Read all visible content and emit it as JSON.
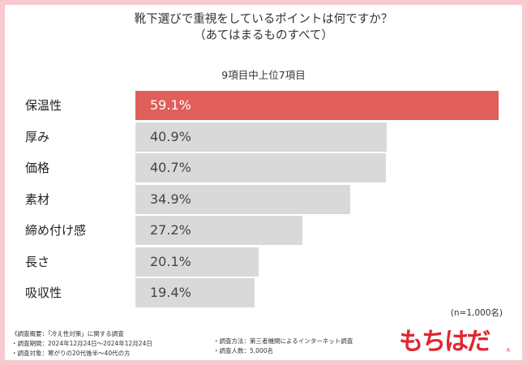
{
  "title_line1": "靴下選びで重視をしているポイントは何ですか？",
  "title_line2": "（あてはまるものすべて）",
  "subtitle": "9項目中上位7項目",
  "note": "(n=1,000名)",
  "footer": {
    "heading": "《調査概要：「冷え性対策」に関する調査",
    "period": "・調査期間：2024年12月24日～2024年12月24日",
    "target": "・調査対象：寒がりの20代後半～40代の方",
    "method": "・調査方法：第三者機関によるインターネット調査",
    "count": "・調査人数：5,000名"
  },
  "brand": "もちはだ",
  "brand_mark": "R",
  "colors": {
    "highlight_bar": "#e05f5b",
    "default_bar": "#d9d9d9",
    "highlight_text": "#ffffff",
    "default_text": "#444444",
    "background": "#f8c9cf",
    "brand": "#e0262f"
  },
  "chart_data": {
    "type": "bar",
    "orientation": "horizontal",
    "categories": [
      "保温性",
      "厚み",
      "価格",
      "素材",
      "締め付け感",
      "長さ",
      "吸収性"
    ],
    "values": [
      59.1,
      40.9,
      40.7,
      34.9,
      27.2,
      20.1,
      19.4
    ],
    "value_labels": [
      "59.1%",
      "40.9%",
      "40.7%",
      "34.9%",
      "27.2%",
      "20.1%",
      "19.4%"
    ],
    "highlight_index": 0,
    "xlim": [
      0,
      60
    ]
  }
}
